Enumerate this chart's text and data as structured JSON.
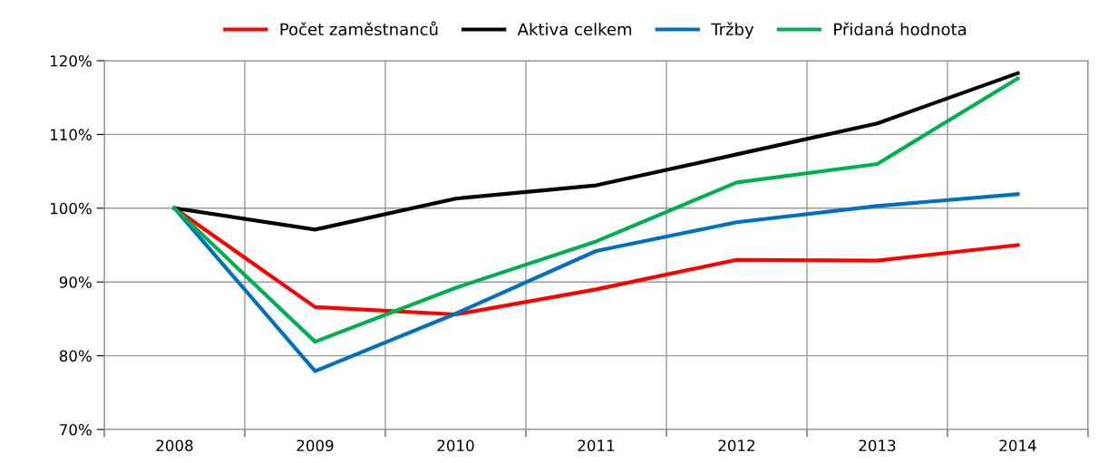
{
  "chart_data": {
    "type": "line",
    "categories": [
      "2008",
      "2009",
      "2010",
      "2011",
      "2012",
      "2013",
      "2014"
    ],
    "series": [
      {
        "name": "Počet zaměstnanců",
        "color": "#ff0000",
        "values": [
          100,
          86.6,
          85.6,
          89.0,
          93.0,
          92.9,
          95.0
        ]
      },
      {
        "name": "Aktiva celkem",
        "color": "#000000",
        "values": [
          100,
          97.1,
          101.3,
          103.1,
          107.3,
          111.5,
          118.3
        ]
      },
      {
        "name": "Tržby",
        "color": "#0070c0",
        "values": [
          100,
          77.9,
          85.7,
          94.2,
          98.1,
          100.3,
          101.9
        ]
      },
      {
        "name": "Přidaná hodnota",
        "color": "#00b050",
        "values": [
          100,
          81.9,
          89.2,
          95.5,
          103.5,
          106.0,
          117.6
        ]
      }
    ],
    "ylim": [
      70,
      120
    ],
    "yticks": [
      {
        "value": 70,
        "label": "70%"
      },
      {
        "value": 80,
        "label": "80%"
      },
      {
        "value": 90,
        "label": "90%"
      },
      {
        "value": 100,
        "label": "100%"
      },
      {
        "value": 110,
        "label": "110%"
      },
      {
        "value": 120,
        "label": "120%"
      }
    ],
    "grid": true,
    "legend": "top",
    "marker": "none",
    "line_style": "solid"
  }
}
